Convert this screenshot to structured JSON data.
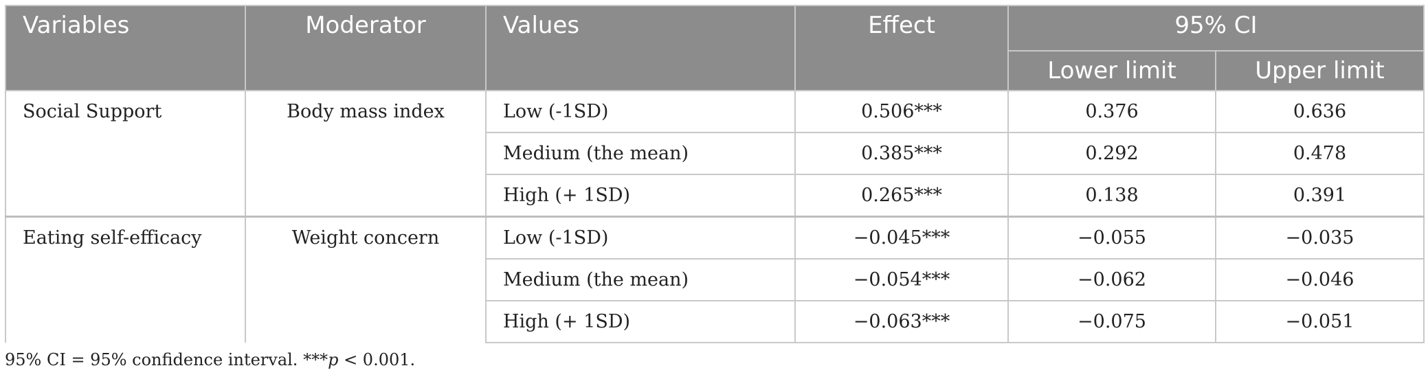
{
  "header": {
    "variables": "Variables",
    "moderator": "Moderator",
    "values": "Values",
    "effect": "Effect",
    "ci": "95% CI",
    "lower": "Lower limit",
    "upper": "Upper limit"
  },
  "groups": [
    {
      "variable": "Social Support",
      "moderator": "Body mass index",
      "rows": [
        {
          "value": "Low (-1SD)",
          "effect": "0.506***",
          "lower": "0.376",
          "upper": "0.636"
        },
        {
          "value": "Medium (the mean)",
          "effect": "0.385***",
          "lower": "0.292",
          "upper": "0.478"
        },
        {
          "value": "High (+ 1SD)",
          "effect": "0.265***",
          "lower": "0.138",
          "upper": "0.391"
        }
      ]
    },
    {
      "variable": "Eating self-efficacy",
      "moderator": "Weight concern",
      "rows": [
        {
          "value": "Low (-1SD)",
          "effect": "−0.045***",
          "lower": "−0.055",
          "upper": "−0.035"
        },
        {
          "value": "Medium (the mean)",
          "effect": "−0.054***",
          "lower": "−0.062",
          "upper": "−0.046"
        },
        {
          "value": "High (+ 1SD)",
          "effect": "−0.063***",
          "lower": "−0.075",
          "upper": "−0.051"
        }
      ]
    }
  ],
  "footnote": {
    "prefix": "95% CI = 95% confidence interval. ***",
    "p": "p",
    "suffix": " < 0.001."
  }
}
